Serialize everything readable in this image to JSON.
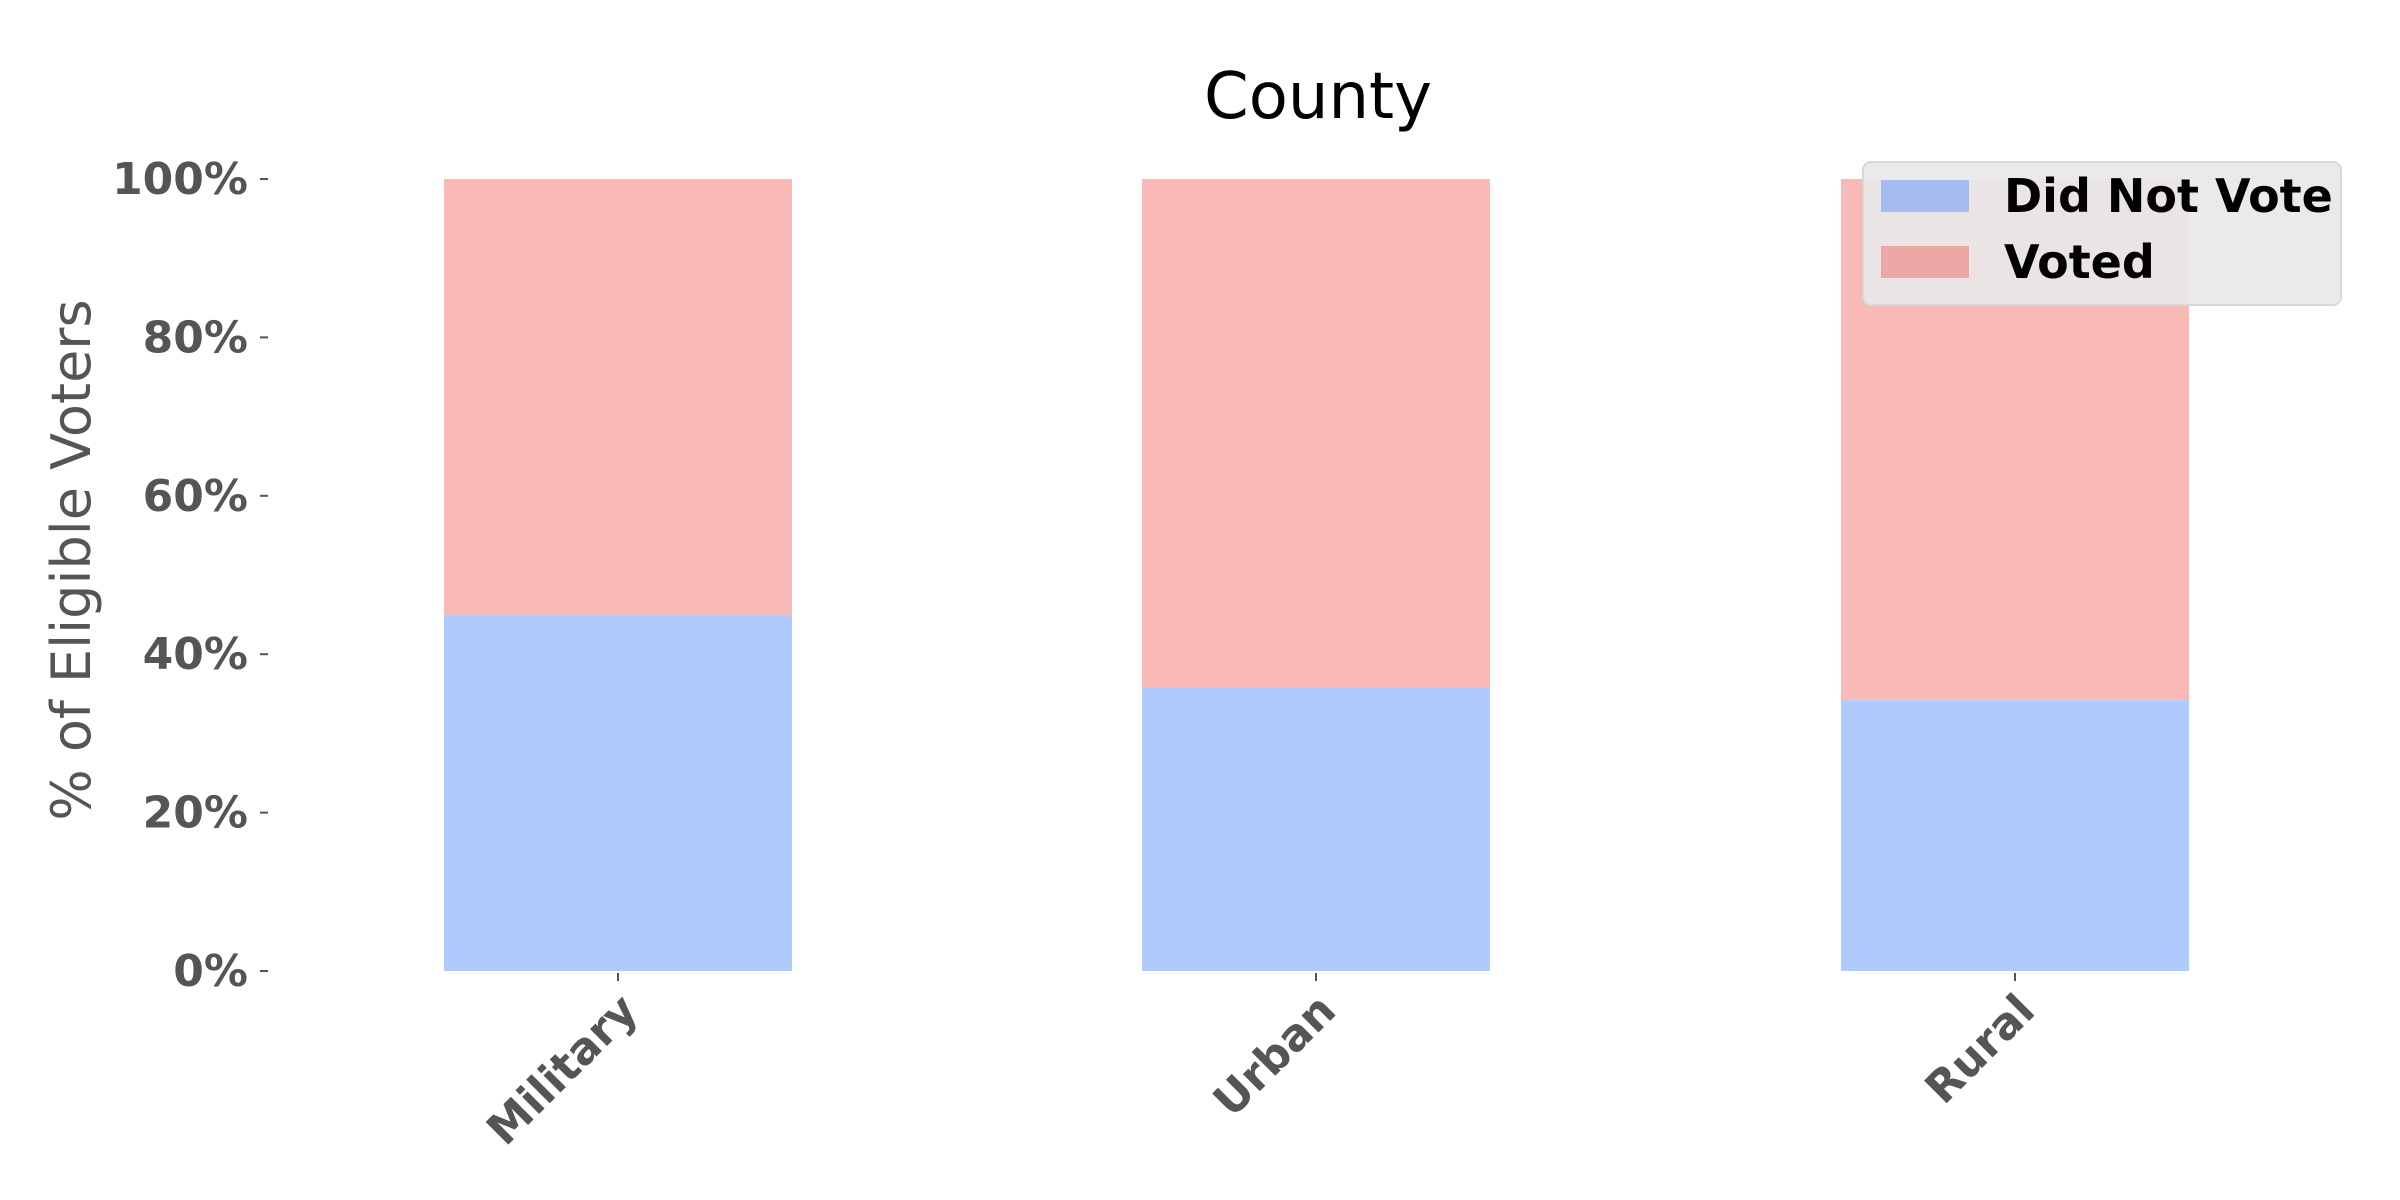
{
  "chart_data": {
    "type": "bar",
    "stacked": true,
    "title": "County",
    "xlabel": "",
    "ylabel": "% of Eligible Voters",
    "categories": [
      "Military",
      "Urban",
      "Rural"
    ],
    "series": [
      {
        "name": "Did Not Vote",
        "values": [
          45,
          35.8,
          34.2
        ],
        "color": "#aecbfc"
      },
      {
        "name": "Voted",
        "values": [
          55,
          64.2,
          65.8
        ],
        "color": "#f9b9b6"
      }
    ],
    "ylim": [
      0,
      100
    ],
    "y_ticks": [
      "0%",
      "20%",
      "40%",
      "60%",
      "80%",
      "100%"
    ],
    "y_tick_values": [
      0,
      20,
      40,
      60,
      80,
      100
    ],
    "legend": {
      "position": "top-right",
      "entries": [
        {
          "label": "Did Not Vote",
          "color": "#a4bcef"
        },
        {
          "label": "Voted",
          "color": "#eda8a6"
        }
      ],
      "background": "#e8e8e8"
    },
    "grid": false
  }
}
